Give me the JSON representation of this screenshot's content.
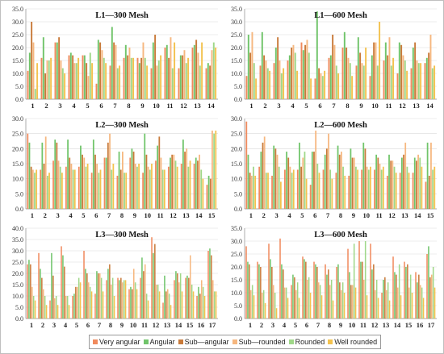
{
  "series_colors": [
    "#f08a5d",
    "#70c46a",
    "#c87a3a",
    "#f6b77f",
    "#9fd788",
    "#f3c24e"
  ],
  "chart_data": [
    {
      "type": "bar",
      "title": "L1—300 Mesh",
      "ylim": [
        0,
        35
      ],
      "yticks": [
        0,
        5,
        10,
        15,
        20,
        25,
        30,
        35
      ],
      "categories": [
        "1",
        "2",
        "3",
        "4",
        "5",
        "6",
        "7",
        "8",
        "9",
        "10",
        "11",
        "12",
        "13",
        "14"
      ],
      "series": [
        {
          "name": "Very angular",
          "values": [
            11,
            16,
            22,
            17,
            17,
            6,
            13,
            16,
            16,
            12,
            20,
            12,
            20,
            12
          ]
        },
        {
          "name": "Angular",
          "values": [
            18,
            24,
            22,
            18,
            17,
            23,
            28,
            21,
            14,
            22,
            21,
            17,
            21,
            14
          ]
        },
        {
          "name": "Sub—angular",
          "values": [
            30,
            10,
            24,
            17,
            14,
            22,
            22,
            17,
            16,
            25,
            16,
            17,
            23,
            13
          ]
        },
        {
          "name": "Sub—rounded",
          "values": [
            22,
            15,
            15,
            14,
            9,
            19,
            21,
            20,
            22,
            13,
            24,
            19,
            18,
            19
          ]
        },
        {
          "name": "Rounded",
          "values": [
            4,
            15,
            12,
            14,
            18,
            16,
            12,
            16,
            16,
            15,
            12,
            14,
            13,
            22
          ]
        },
        {
          "name": "Well rounded",
          "values": [
            14,
            16,
            10,
            16,
            14,
            14,
            13,
            16,
            13,
            17,
            22,
            16,
            22,
            20
          ]
        }
      ]
    },
    {
      "type": "bar",
      "title": "L1—600 Mesh",
      "ylim": [
        0,
        35
      ],
      "yticks": [
        0,
        5,
        10,
        15,
        20,
        25,
        30,
        35
      ],
      "categories": [
        "1",
        "2",
        "3",
        "4",
        "5",
        "6",
        "7",
        "8",
        "9",
        "10",
        "11",
        "12",
        "13",
        "14"
      ],
      "series": [
        {
          "name": "Very angular",
          "values": [
            9,
            13,
            14,
            15,
            22,
            8,
            16,
            20,
            13,
            9,
            15,
            10,
            12,
            14
          ]
        },
        {
          "name": "Angular",
          "values": [
            25,
            26,
            20,
            17,
            19,
            34,
            17,
            26,
            24,
            17,
            22,
            22,
            20,
            16
          ]
        },
        {
          "name": "Sub—angular",
          "values": [
            18,
            17,
            24,
            20,
            21,
            12,
            25,
            20,
            18,
            22,
            17,
            21,
            22,
            18
          ]
        },
        {
          "name": "Sub—rounded",
          "values": [
            26,
            15,
            15,
            21,
            23,
            10,
            21,
            16,
            14,
            22,
            24,
            17,
            15,
            25
          ]
        },
        {
          "name": "Rounded",
          "values": [
            14,
            12,
            10,
            18,
            18,
            9,
            13,
            14,
            13,
            13,
            13,
            15,
            14,
            12
          ]
        },
        {
          "name": "Well rounded",
          "values": [
            8,
            11,
            12,
            11,
            8,
            11,
            10,
            9,
            20,
            30,
            16,
            11,
            14,
            13
          ]
        }
      ]
    },
    {
      "type": "bar",
      "title": "L2—300 Mesh",
      "ylim": [
        0,
        30
      ],
      "yticks": [
        0,
        5,
        10,
        15,
        20,
        25,
        30
      ],
      "categories": [
        "1",
        "2",
        "3",
        "4",
        "5",
        "6",
        "7",
        "8",
        "9",
        "10",
        "11",
        "12",
        "13",
        "14",
        "15"
      ],
      "series": [
        {
          "name": "Very angular",
          "values": [
            25,
            13,
            16,
            14,
            14,
            12,
            17,
            11,
            17,
            12,
            16,
            14,
            15,
            15,
            8
          ]
        },
        {
          "name": "Angular",
          "values": [
            22,
            22,
            23,
            23,
            21,
            23,
            17,
            19,
            20,
            25,
            21,
            17,
            23,
            17,
            11
          ]
        },
        {
          "name": "Sub—angular",
          "values": [
            14,
            15,
            22,
            17,
            18,
            18,
            22,
            13,
            19,
            18,
            24,
            18,
            19,
            16,
            10
          ]
        },
        {
          "name": "Sub—rounded",
          "values": [
            13,
            24,
            16,
            15,
            17,
            15,
            25,
            19,
            15,
            14,
            17,
            18,
            20,
            18,
            26
          ]
        },
        {
          "name": "Rounded",
          "values": [
            12,
            11,
            14,
            13,
            14,
            12,
            13,
            12,
            14,
            13,
            13,
            16,
            14,
            13,
            25
          ]
        },
        {
          "name": "Well rounded",
          "values": [
            13,
            12,
            12,
            13,
            15,
            13,
            15,
            12,
            15,
            15,
            13,
            14,
            16,
            10,
            26
          ]
        }
      ]
    },
    {
      "type": "bar",
      "title": "L2—600 Mesh",
      "ylim": [
        0,
        30
      ],
      "yticks": [
        0,
        5,
        10,
        15,
        20,
        25,
        30
      ],
      "categories": [
        "1",
        "2",
        "3",
        "4",
        "5",
        "6",
        "7",
        "8",
        "9",
        "10",
        "11",
        "12",
        "13",
        "14",
        "15"
      ],
      "series": [
        {
          "name": "Very angular",
          "values": [
            29,
            14,
            11,
            13,
            13,
            8,
            13,
            12,
            11,
            13,
            13,
            11,
            12,
            12,
            9
          ]
        },
        {
          "name": "Angular",
          "values": [
            18,
            19,
            21,
            19,
            22,
            19,
            18,
            21,
            20,
            22,
            18,
            18,
            17,
            17,
            22
          ]
        },
        {
          "name": "Sub—angular",
          "values": [
            12,
            22,
            20,
            17,
            14,
            19,
            20,
            18,
            17,
            20,
            17,
            16,
            18,
            16,
            11
          ]
        },
        {
          "name": "Sub—rounded",
          "values": [
            11,
            24,
            18,
            14,
            17,
            26,
            25,
            19,
            17,
            14,
            15,
            16,
            22,
            18,
            22
          ]
        },
        {
          "name": "Rounded",
          "values": [
            14,
            12,
            14,
            12,
            19,
            15,
            13,
            14,
            14,
            13,
            13,
            14,
            14,
            17,
            13
          ]
        },
        {
          "name": "Well rounded",
          "values": [
            11,
            12,
            9,
            13,
            10,
            12,
            10,
            11,
            13,
            14,
            14,
            12,
            12,
            14,
            14
          ]
        }
      ]
    },
    {
      "type": "bar",
      "title": "L3—300 Mesh",
      "ylim": [
        0,
        40
      ],
      "yticks": [
        0,
        5,
        10,
        15,
        20,
        25,
        30,
        35,
        40
      ],
      "categories": [
        "1",
        "2",
        "3",
        "4",
        "5",
        "6",
        "7",
        "8",
        "9",
        "10",
        "11",
        "12",
        "13",
        "14",
        "15",
        "16",
        "17"
      ],
      "series": [
        {
          "name": "Very angular",
          "values": [
            24,
            29,
            8,
            32,
            10,
            30,
            11,
            17,
            18,
            13,
            18,
            36,
            7,
            17,
            18,
            10,
            30
          ]
        },
        {
          "name": "Angular",
          "values": [
            26,
            22,
            29,
            28,
            11,
            22,
            21,
            22,
            17,
            14,
            27,
            29,
            19,
            21,
            19,
            14,
            31
          ]
        },
        {
          "name": "Sub—angular",
          "values": [
            24,
            18,
            19,
            23,
            14,
            20,
            20,
            24,
            18,
            13,
            21,
            33,
            12,
            20,
            18,
            11,
            28
          ]
        },
        {
          "name": "Sub—rounded",
          "values": [
            14,
            13,
            9,
            10,
            14,
            16,
            20,
            15,
            16,
            22,
            24,
            15,
            13,
            16,
            28,
            17,
            17
          ]
        },
        {
          "name": "Rounded",
          "values": [
            10,
            10,
            10,
            10,
            18,
            14,
            18,
            18,
            17,
            16,
            11,
            15,
            11,
            20,
            15,
            14,
            12
          ]
        },
        {
          "name": "Well rounded",
          "values": [
            8,
            6,
            6,
            6,
            16,
            12,
            12,
            10,
            17,
            13,
            8,
            12,
            6,
            12,
            12,
            10,
            12
          ]
        }
      ]
    },
    {
      "type": "bar",
      "title": "L3—600 Mesh",
      "ylim": [
        0,
        35
      ],
      "yticks": [
        0,
        5,
        10,
        15,
        20,
        25,
        30,
        35
      ],
      "categories": [
        "1",
        "2",
        "3",
        "4",
        "5",
        "6",
        "7",
        "8",
        "9",
        "10",
        "11",
        "12",
        "13",
        "14",
        "15",
        "16",
        "17"
      ],
      "series": [
        {
          "name": "Very angular",
          "values": [
            28,
            22,
            29,
            31,
            13,
            24,
            22,
            21,
            20,
            27,
            30,
            29,
            10,
            24,
            22,
            18,
            25
          ]
        },
        {
          "name": "Angular",
          "values": [
            22,
            21,
            23,
            21,
            17,
            23,
            21,
            17,
            21,
            18,
            22,
            19,
            15,
            18,
            20,
            14,
            28
          ]
        },
        {
          "name": "Sub—angular",
          "values": [
            21,
            20,
            20,
            19,
            16,
            22,
            20,
            19,
            14,
            13,
            22,
            21,
            16,
            17,
            21,
            17,
            16
          ]
        },
        {
          "name": "Sub—rounded",
          "values": [
            11,
            10,
            13,
            12,
            11,
            15,
            14,
            13,
            11,
            13,
            15,
            11,
            11,
            12,
            12,
            13,
            17
          ]
        },
        {
          "name": "Rounded",
          "values": [
            13,
            11,
            10,
            12,
            14,
            16,
            13,
            15,
            14,
            29,
            30,
            15,
            14,
            21,
            17,
            12,
            20
          ]
        },
        {
          "name": "Well rounded",
          "values": [
            9,
            6,
            4,
            8,
            8,
            10,
            9,
            7,
            10,
            12,
            9,
            8,
            7,
            9,
            10,
            8,
            12
          ]
        }
      ]
    }
  ],
  "legend": {
    "items": [
      "Very angular",
      "Angular",
      "Sub—angular",
      "Sub—rounded",
      "Rounded",
      "Well rounded"
    ]
  }
}
